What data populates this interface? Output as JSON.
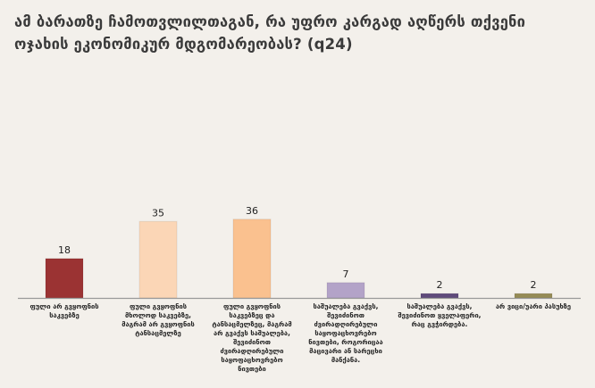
{
  "chart_data": {
    "type": "bar",
    "title": "ამ ბარათზე ჩამოთვლილთაგან, რა უფრო კარგად აღწერს თქვენი ოჯახის ეკონომიკურ მდგომარეობას? (q24)",
    "xlabel": "",
    "ylabel": "",
    "ylim": [
      0,
      40
    ],
    "grid": false,
    "categories": [
      "ფული არ გვყოფნის საკვებზე",
      "ფული გვყოფნის მხოლოდ საკვებზე, მაგრამ არ გვყოფნის ტანსაცმელზე",
      "ფული გვყოფნის საკვებზეც და ტანსაცმელზეც, მაგრამ არ გვაქვს საშუალება, შევიძინოთ ძვირადღირებული საყოფაცხოვრებო ნივთები",
      "საშუალება გვაქვს, შევიძინოთ ძვირადღირებული საყოფაცხოვრებო ნივთები, როგორიცაა მაცივარი ან სარეცხი მანქანა.",
      "საშუალება გვაქვს, შევიძინოთ ყველაფერი, რაც გვჭირდება.",
      "არ ვიცი/უარი პასუხზე"
    ],
    "values": [
      18,
      35,
      36,
      7,
      2,
      2
    ],
    "colors": [
      "#9b3333",
      "#fbd6b6",
      "#fac18f",
      "#b3a3c8",
      "#5f4a7b",
      "#958b55"
    ]
  }
}
